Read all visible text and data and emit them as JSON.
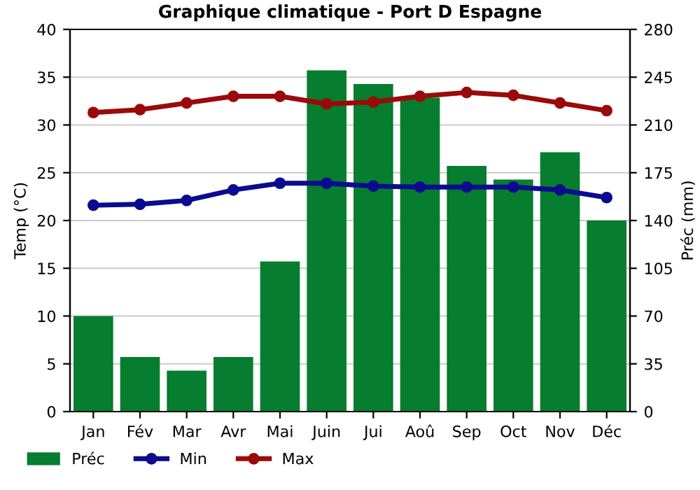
{
  "chart_data": {
    "type": "bar",
    "title": "Graphique climatique - Port D Espagne",
    "ylabel": "Temp (°C)",
    "y2label": "Préc (mm)",
    "categories": [
      "Jan",
      "Fév",
      "Mar",
      "Avr",
      "Mai",
      "Juin",
      "Jui",
      "Aoû",
      "Sep",
      "Oct",
      "Nov",
      "Déc"
    ],
    "series": [
      {
        "name": "Préc",
        "axis": "y2",
        "color": "#077d2f",
        "values": [
          70,
          40,
          30,
          40,
          110,
          250,
          240,
          230,
          180,
          170,
          190,
          140
        ]
      },
      {
        "name": "Min",
        "type": "line",
        "axis": "y",
        "color": "#0b0b8f",
        "values": [
          21.6,
          21.7,
          22.1,
          23.2,
          23.9,
          23.9,
          23.6,
          23.5,
          23.5,
          23.5,
          23.2,
          22.4
        ]
      },
      {
        "name": "Max",
        "type": "line",
        "axis": "y",
        "color": "#9b0a0a",
        "values": [
          31.3,
          31.6,
          32.3,
          33.0,
          33.0,
          32.2,
          32.4,
          33.0,
          33.4,
          33.1,
          32.3,
          31.5
        ]
      }
    ],
    "ylim": [
      0,
      40
    ],
    "yticks": [
      0,
      5,
      10,
      15,
      20,
      25,
      30,
      35,
      40
    ],
    "y2lim": [
      0,
      280
    ],
    "y2ticks": [
      0,
      35,
      70,
      105,
      140,
      175,
      210,
      245,
      280
    ],
    "grid": "y",
    "legend": "bottom",
    "marker": "circle",
    "line_style": "solid"
  }
}
